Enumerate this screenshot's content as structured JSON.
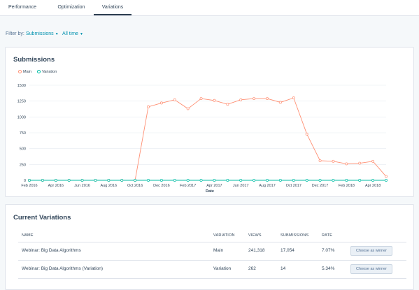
{
  "tabs": [
    {
      "label": "Performance"
    },
    {
      "label": "Optimization"
    },
    {
      "label": "Variations"
    }
  ],
  "filter": {
    "label": "Filter by:",
    "metric": "Submissions",
    "range": "All time"
  },
  "submissions_card": {
    "title": "Submissions"
  },
  "chart_data": {
    "type": "line",
    "title": "Submissions",
    "xlabel": "Date",
    "ylabel": "",
    "ylim": [
      0,
      1500
    ],
    "yticks": [
      "0",
      "250",
      "500",
      "750",
      "1000",
      "1250",
      "1500"
    ],
    "ytick_values": [
      0,
      250,
      500,
      750,
      1000,
      1250,
      1500
    ],
    "xticks": [
      "Feb 2016",
      "Apr 2016",
      "Jun 2016",
      "Aug 2016",
      "Oct 2016",
      "Dec 2016",
      "Feb 2017",
      "Apr 2017",
      "Jun 2017",
      "Aug 2017",
      "Oct 2017",
      "Dec 2017",
      "Feb 2018",
      "Apr 2018"
    ],
    "x": [
      "Feb 2016",
      "Mar 2016",
      "Apr 2016",
      "May 2016",
      "Jun 2016",
      "Jul 2016",
      "Aug 2016",
      "Sep 2016",
      "Oct 2016",
      "Nov 2016",
      "Dec 2016",
      "Jan 2017",
      "Feb 2017",
      "Mar 2017",
      "Apr 2017",
      "May 2017",
      "Jun 2017",
      "Jul 2017",
      "Aug 2017",
      "Sep 2017",
      "Oct 2017",
      "Nov 2017",
      "Dec 2017",
      "Jan 2018",
      "Feb 2018",
      "Mar 2018",
      "Apr 2018",
      "May 2018"
    ],
    "grid": true,
    "legend": "top-left",
    "series": [
      {
        "name": "Main",
        "color": "#ff8f73",
        "values": [
          0,
          0,
          0,
          0,
          0,
          0,
          0,
          0,
          0,
          1160,
          1220,
          1270,
          1130,
          1290,
          1260,
          1200,
          1270,
          1290,
          1290,
          1230,
          1300,
          730,
          310,
          300,
          260,
          270,
          300,
          60
        ]
      },
      {
        "name": "Variation",
        "color": "#00bda5",
        "values": [
          0,
          0,
          0,
          0,
          0,
          0,
          0,
          0,
          0,
          0,
          0,
          0,
          0,
          0,
          0,
          0,
          0,
          0,
          0,
          0,
          0,
          0,
          0,
          0,
          0,
          0,
          0,
          0
        ]
      }
    ]
  },
  "variations_card": {
    "title": "Current Variations",
    "columns": [
      "NAME",
      "VARIATION",
      "VIEWS",
      "SUBMISSIONS",
      "RATE"
    ],
    "rows": [
      {
        "name": "Webinar: Big Data Algorithms",
        "variation": "Main",
        "views": "241,318",
        "submissions": "17,054",
        "rate": "7.07%",
        "action": "Choose as winner"
      },
      {
        "name": "Webinar: Big Data Algorithms (Variation)",
        "variation": "Variation",
        "views": "262",
        "submissions": "14",
        "rate": "5.34%",
        "action": "Choose as winner"
      }
    ]
  }
}
